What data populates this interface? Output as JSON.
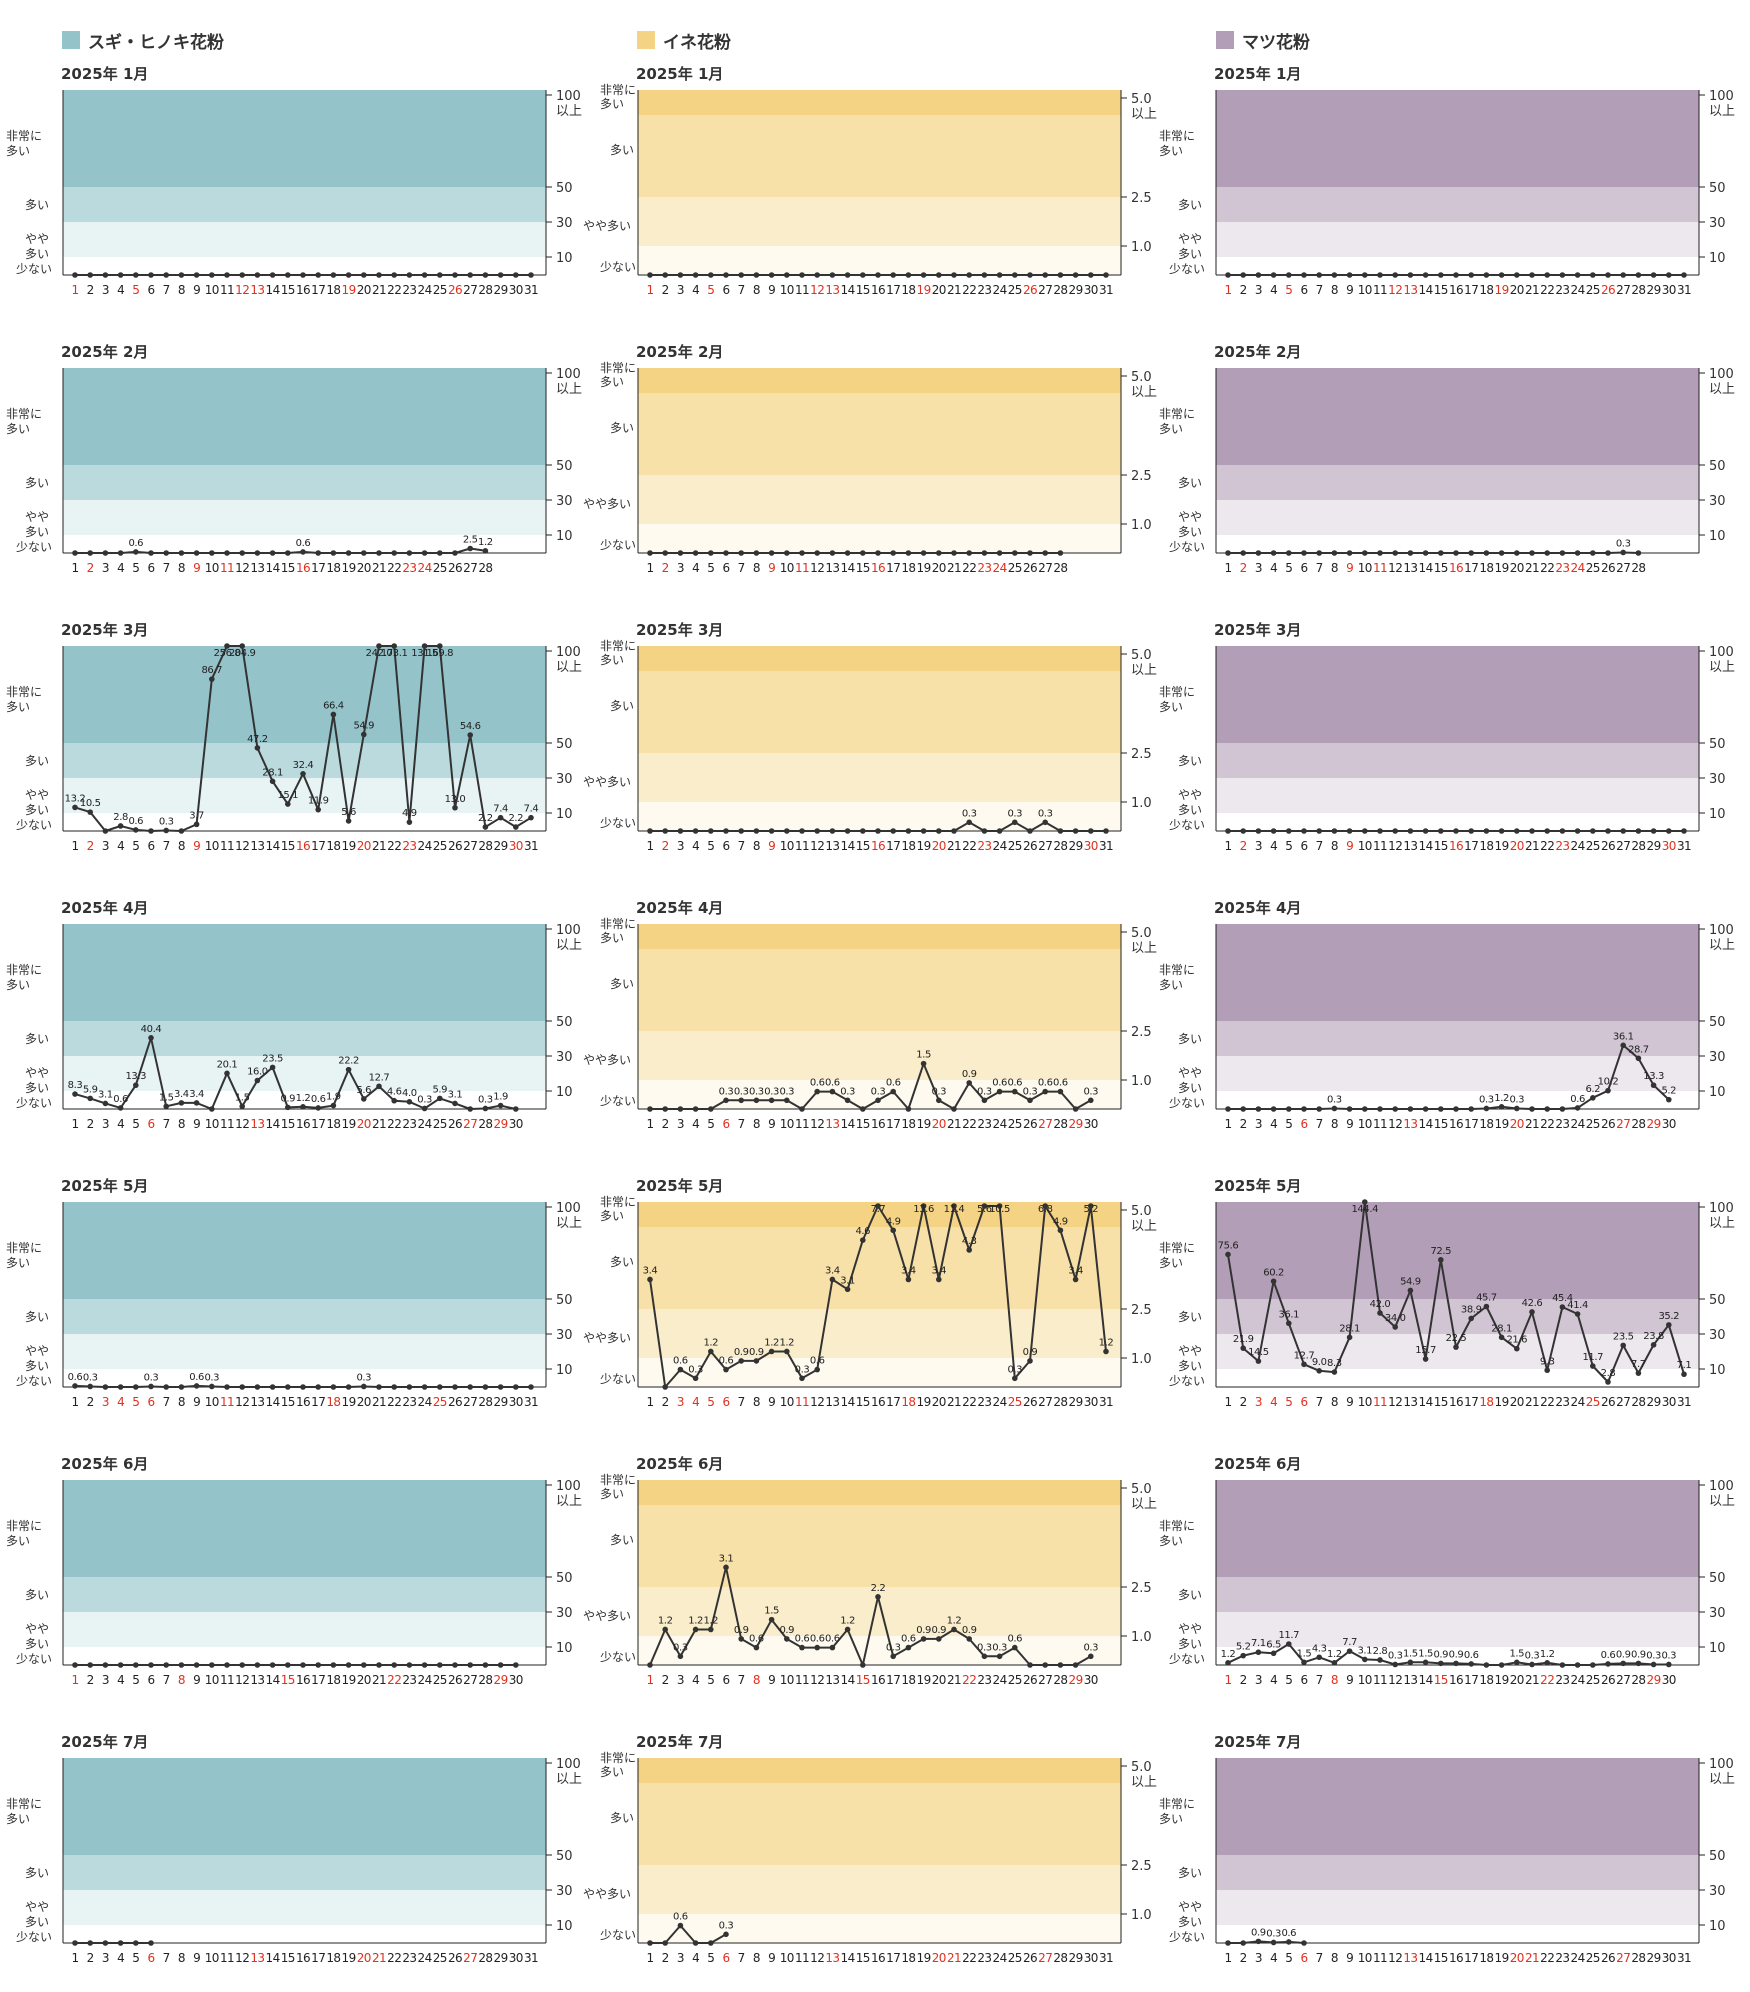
{
  "legend": [
    {
      "name": "スギ・ヒノキ花粉",
      "color": "#95c3ca"
    },
    {
      "name": "イネ花粉",
      "color": "#f5d385"
    },
    {
      "name": "マツ花粉",
      "color": "#b39eb7"
    }
  ],
  "colors": {
    "sugi": [
      "#95c3ca",
      "#bbdadd",
      "#e8f3f4",
      "#ffffff"
    ],
    "ine": [
      "#f5d385",
      "#f7e1a8",
      "#faedcc",
      "#fefaf0"
    ],
    "matsu": [
      "#b39eb7",
      "#d1c5d3",
      "#ede7ee",
      "#ffffff"
    ],
    "line": "#333333",
    "holiday": "#e0301e"
  },
  "level_labels_sugi": [
    "非常に\n多い",
    "多い",
    "やや\n多い",
    "少ない"
  ],
  "level_labels_ine": [
    "非常に\n多い",
    "多い",
    "やや多い",
    "少ない"
  ],
  "axis_sugi": [
    "100\n以上",
    "50",
    "30",
    "10"
  ],
  "axis_ine": [
    "5.0\n以上",
    "2.5",
    "1.0"
  ],
  "chart_data": [
    {
      "type": "line",
      "series_type": "sugi",
      "title": "2025年 1月",
      "days": 31,
      "holidays": [
        1,
        5,
        12,
        13,
        19,
        26
      ],
      "values": [
        0,
        0,
        0,
        0,
        0,
        0,
        0,
        0,
        0,
        0,
        0,
        0,
        0,
        0,
        0,
        0,
        0,
        0,
        0,
        0,
        0,
        0,
        0,
        0,
        0,
        0,
        0,
        0,
        0,
        0,
        0
      ],
      "labels": {}
    },
    {
      "type": "line",
      "series_type": "ine",
      "title": "2025年 1月",
      "days": 31,
      "holidays": [
        1,
        5,
        12,
        13,
        19,
        26
      ],
      "values": [
        0,
        0,
        0,
        0,
        0,
        0,
        0,
        0,
        0,
        0,
        0,
        0,
        0,
        0,
        0,
        0,
        0,
        0,
        0,
        0,
        0,
        0,
        0,
        0,
        0,
        0,
        0,
        0,
        0,
        0,
        0
      ],
      "labels": {}
    },
    {
      "type": "line",
      "series_type": "matsu",
      "title": "2025年 1月",
      "days": 31,
      "holidays": [
        1,
        5,
        12,
        13,
        19,
        26
      ],
      "values": [
        0,
        0,
        0,
        0,
        0,
        0,
        0,
        0,
        0,
        0,
        0,
        0,
        0,
        0,
        0,
        0,
        0,
        0,
        0,
        0,
        0,
        0,
        0,
        0,
        0,
        0,
        0,
        0,
        0,
        0,
        0
      ],
      "labels": {}
    },
    {
      "type": "line",
      "series_type": "sugi",
      "title": "2025年 2月",
      "days": 28,
      "holidays": [
        2,
        9,
        11,
        16,
        23,
        24
      ],
      "values": [
        0,
        0,
        0,
        0,
        0.6,
        0,
        0,
        0,
        0,
        0,
        0,
        0,
        0,
        0,
        0,
        0.6,
        0,
        0,
        0,
        0,
        0,
        0,
        0,
        0,
        0,
        0,
        2.5,
        1.2
      ],
      "labels": {
        "5": "0.6",
        "16": "0.6",
        "27": "2.5",
        "28": "1.2"
      }
    },
    {
      "type": "line",
      "series_type": "ine",
      "title": "2025年 2月",
      "days": 28,
      "holidays": [
        2,
        9,
        11,
        16,
        23,
        24
      ],
      "values": [
        0,
        0,
        0,
        0,
        0,
        0,
        0,
        0,
        0,
        0,
        0,
        0,
        0,
        0,
        0,
        0,
        0,
        0,
        0,
        0,
        0,
        0,
        0,
        0,
        0,
        0,
        0,
        0
      ],
      "labels": {}
    },
    {
      "type": "line",
      "series_type": "matsu",
      "title": "2025年 2月",
      "days": 28,
      "holidays": [
        2,
        9,
        11,
        16,
        23,
        24
      ],
      "values": [
        0,
        0,
        0,
        0,
        0,
        0,
        0,
        0,
        0,
        0,
        0,
        0,
        0,
        0,
        0,
        0,
        0,
        0,
        0,
        0,
        0,
        0,
        0,
        0,
        0,
        0,
        0.3,
        0
      ],
      "labels": {
        "27": "0.3"
      }
    },
    {
      "type": "line",
      "series_type": "sugi",
      "title": "2025年 3月",
      "days": 31,
      "holidays": [
        2,
        9,
        16,
        20,
        23,
        30
      ],
      "values": [
        13.2,
        10.5,
        0,
        2.8,
        0.6,
        0,
        0.3,
        0,
        3.7,
        86.7,
        256.8,
        204.9,
        47.2,
        28.1,
        15.1,
        32.4,
        11.9,
        66.4,
        5.6,
        54.9,
        242.0,
        173.1,
        4.9,
        131.5,
        169.8,
        13.0,
        54.6,
        2.2,
        7.4,
        2.2,
        7.4
      ],
      "labels": {
        "1": "13.2",
        "2": "10.5",
        "4": "2.8",
        "5": "0.6",
        "7": "0.3",
        "9": "3.7",
        "10": "86.7",
        "11": "256.8",
        "12": "204.9",
        "13": "47.2",
        "14": "28.1",
        "15": "15.1",
        "16": "32.4",
        "17": "11.9",
        "18": "66.4",
        "19": "5.6",
        "20": "54.9",
        "21": "242.0",
        "22": "173.1",
        "23": "4.9",
        "24": "131.5",
        "25": "169.8",
        "26": "13.0",
        "27": "54.6",
        "28": "2.2",
        "29": "7.4",
        "30": "2.2",
        "31": "7.4"
      }
    },
    {
      "type": "line",
      "series_type": "ine",
      "title": "2025年 3月",
      "days": 31,
      "holidays": [
        2,
        9,
        16,
        20,
        23,
        30
      ],
      "values": [
        0,
        0,
        0,
        0,
        0,
        0,
        0,
        0,
        0,
        0,
        0,
        0,
        0,
        0,
        0,
        0,
        0,
        0,
        0,
        0,
        0,
        0.3,
        0,
        0,
        0.3,
        0,
        0.3,
        0,
        0,
        0,
        0
      ],
      "labels": {
        "22": "0.3",
        "25": "0.3",
        "27": "0.3"
      }
    },
    {
      "type": "line",
      "series_type": "matsu",
      "title": "2025年 3月",
      "days": 31,
      "holidays": [
        2,
        9,
        16,
        20,
        23,
        30
      ],
      "values": [
        0,
        0,
        0,
        0,
        0,
        0,
        0,
        0,
        0,
        0,
        0,
        0,
        0,
        0,
        0,
        0,
        0,
        0,
        0,
        0,
        0,
        0,
        0,
        0,
        0,
        0,
        0,
        0,
        0,
        0,
        0
      ],
      "labels": {}
    },
    {
      "type": "line",
      "series_type": "sugi",
      "title": "2025年 4月",
      "days": 30,
      "holidays": [
        6,
        13,
        20,
        27,
        29
      ],
      "values": [
        8.3,
        5.9,
        3.1,
        0.6,
        13.3,
        40.4,
        1.5,
        3.4,
        3.4,
        0,
        20.1,
        1.5,
        16.0,
        23.5,
        0.9,
        1.2,
        0.6,
        1.9,
        22.2,
        5.6,
        12.7,
        4.6,
        4.0,
        0.3,
        5.9,
        3.1,
        0,
        0.3,
        1.9,
        0
      ],
      "labels": {
        "1": "8.3",
        "2": "5.9",
        "3": "3.1",
        "4": "0.6",
        "5": "13.3",
        "6": "40.4",
        "7": "1.5",
        "8": "3.4",
        "9": "3.4",
        "11": "20.1",
        "12": "1.5",
        "13": "16.0",
        "14": "23.5",
        "15": "0.9",
        "16": "1.2",
        "17": "0.6",
        "18": "1.9",
        "19": "22.2",
        "20": "5.6",
        "21": "12.7",
        "22": "4.6",
        "23": "4.0",
        "24": "0.3",
        "25": "5.9",
        "26": "3.1",
        "28": "0.3",
        "29": "1.9"
      }
    },
    {
      "type": "line",
      "series_type": "ine",
      "title": "2025年 4月",
      "days": 30,
      "holidays": [
        6,
        13,
        20,
        27,
        29
      ],
      "values": [
        0,
        0,
        0,
        0,
        0,
        0.3,
        0.3,
        0.3,
        0.3,
        0.3,
        0,
        0.6,
        0.6,
        0.3,
        0,
        0.3,
        0.6,
        0,
        1.5,
        0.3,
        0,
        0.9,
        0.3,
        0.6,
        0.6,
        0.3,
        0.6,
        0.6,
        0,
        0.3
      ],
      "labels": {
        "6": "0.3",
        "7": "0.3",
        "8": "0.3",
        "9": "0.3",
        "10": "0.3",
        "12": "0.6",
        "13": "0.6",
        "14": "0.3",
        "16": "0.3",
        "17": "0.6",
        "19": "1.5",
        "20": "0.3",
        "22": "0.9",
        "23": "0.3",
        "24": "0.6",
        "25": "0.6",
        "26": "0.3",
        "27": "0.6",
        "28": "0.6",
        "30": "0.3"
      }
    },
    {
      "type": "line",
      "series_type": "matsu",
      "title": "2025年 4月",
      "days": 30,
      "holidays": [
        6,
        13,
        20,
        27,
        29
      ],
      "values": [
        0,
        0,
        0,
        0,
        0,
        0,
        0,
        0.3,
        0,
        0,
        0,
        0,
        0,
        0,
        0,
        0,
        0,
        0.3,
        1.2,
        0.3,
        0,
        0,
        0,
        0.6,
        6.2,
        10.2,
        36.1,
        28.7,
        13.3,
        5.2
      ],
      "labels": {
        "8": "0.3",
        "18": "0.3",
        "19": "1.2",
        "20": "0.3",
        "24": "0.6",
        "25": "6.2",
        "26": "10.2",
        "27": "36.1",
        "28": "28.7",
        "29": "13.3",
        "30": "5.2"
      }
    },
    {
      "type": "line",
      "series_type": "sugi",
      "title": "2025年 5月",
      "days": 31,
      "holidays": [
        3,
        4,
        5,
        6,
        11,
        18,
        25
      ],
      "values": [
        0.6,
        0.3,
        0,
        0,
        0,
        0.3,
        0,
        0,
        0.6,
        0.3,
        0,
        0,
        0,
        0,
        0,
        0,
        0,
        0,
        0,
        0.3,
        0,
        0,
        0,
        0,
        0,
        0,
        0,
        0,
        0,
        0,
        0
      ],
      "labels": {
        "1": "0.6",
        "2": "0.3",
        "6": "0.3",
        "9": "0.6",
        "10": "0.3",
        "20": "0.3"
      }
    },
    {
      "type": "line",
      "series_type": "ine",
      "title": "2025年 5月",
      "days": 31,
      "holidays": [
        3,
        4,
        5,
        6,
        11,
        18,
        25
      ],
      "values": [
        3.4,
        0,
        0.6,
        0.3,
        1.2,
        0.6,
        0.9,
        0.9,
        1.2,
        1.2,
        0.3,
        0.6,
        3.4,
        3.1,
        4.6,
        7.7,
        4.9,
        3.4,
        13.6,
        3.4,
        11.4,
        4.3,
        5.6,
        10.5,
        0.3,
        0.9,
        6.8,
        4.9,
        3.4,
        5.2,
        1.2
      ],
      "labels": {
        "1": "3.4",
        "3": "0.6",
        "4": "0.3",
        "5": "1.2",
        "6": "0.6",
        "7": "0.9",
        "8": "0.9",
        "9": "1.2",
        "10": "1.2",
        "11": "0.3",
        "12": "0.6",
        "13": "3.4",
        "14": "3.1",
        "15": "4.6",
        "16": "7.7",
        "17": "4.9",
        "18": "3.4",
        "19": "13.6",
        "20": "3.4",
        "21": "11.4",
        "22": "4.3",
        "23": "5.6",
        "24": "10.5",
        "25": "0.3",
        "26": "0.9",
        "27": "6.8",
        "28": "4.9",
        "29": "3.4",
        "30": "5.2",
        "31": "1.2"
      }
    },
    {
      "type": "line",
      "series_type": "matsu",
      "title": "2025年 5月",
      "days": 31,
      "holidays": [
        3,
        4,
        5,
        6,
        11,
        18,
        25
      ],
      "values": [
        75.6,
        21.9,
        14.5,
        60.2,
        36.1,
        12.7,
        9.0,
        8.3,
        28.1,
        144.4,
        42.0,
        34.0,
        54.9,
        15.7,
        72.5,
        22.5,
        38.9,
        45.7,
        28.1,
        21.6,
        42.6,
        9.3,
        45.4,
        41.4,
        11.7,
        2.8,
        23.5,
        7.7,
        23.8,
        35.2,
        7.1
      ],
      "labels": {
        "1": "75.6",
        "2": "21.9",
        "3": "14.5",
        "4": "60.2",
        "5": "36.1",
        "6": "12.7",
        "7": "9.0",
        "8": "8.3",
        "9": "28.1",
        "10": "144.4",
        "11": "42.0",
        "12": "34.0",
        "13": "54.9",
        "14": "15.7",
        "15": "72.5",
        "16": "22.5",
        "17": "38.9",
        "18": "45.7",
        "19": "28.1",
        "20": "21.6",
        "21": "42.6",
        "22": "9.3",
        "23": "45.4",
        "24": "41.4",
        "25": "11.7",
        "26": "2.8",
        "27": "23.5",
        "28": "7.7",
        "29": "23.8",
        "30": "35.2",
        "31": "7.1"
      }
    },
    {
      "type": "line",
      "series_type": "sugi",
      "title": "2025年 6月",
      "days": 30,
      "holidays": [
        1,
        8,
        15,
        22,
        29
      ],
      "values": [
        0,
        0,
        0,
        0,
        0,
        0,
        0,
        0,
        0,
        0,
        0,
        0,
        0,
        0,
        0,
        0,
        0,
        0,
        0,
        0,
        0,
        0,
        0,
        0,
        0,
        0,
        0,
        0,
        0,
        0
      ],
      "labels": {}
    },
    {
      "type": "line",
      "series_type": "ine",
      "title": "2025年 6月",
      "days": 30,
      "holidays": [
        1,
        8,
        15,
        22,
        29
      ],
      "values": [
        0,
        1.2,
        0.3,
        1.2,
        1.2,
        3.1,
        0.9,
        0.6,
        1.5,
        0.9,
        0.6,
        0.6,
        0.6,
        1.2,
        0,
        2.2,
        0.3,
        0.6,
        0.9,
        0.9,
        1.2,
        0.9,
        0.3,
        0.3,
        0.6,
        0,
        0,
        0,
        0,
        0.3
      ],
      "labels": {
        "2": "1.2",
        "3": "0.3",
        "4": "1.2",
        "5": "1.2",
        "6": "3.1",
        "7": "0.9",
        "8": "0.6",
        "9": "1.5",
        "10": "0.9",
        "11": "0.6",
        "12": "0.6",
        "13": "0.6",
        "14": "1.2",
        "16": "2.2",
        "17": "0.3",
        "18": "0.6",
        "19": "0.9",
        "20": "0.9",
        "21": "1.2",
        "22": "0.9",
        "23": "0.3",
        "24": "0.3",
        "25": "0.6",
        "30": "0.3"
      }
    },
    {
      "type": "line",
      "series_type": "matsu",
      "title": "2025年 6月",
      "days": 30,
      "holidays": [
        1,
        8,
        15,
        22,
        29
      ],
      "values": [
        1.2,
        5.2,
        7.1,
        6.5,
        11.7,
        1.5,
        4.3,
        1.2,
        7.7,
        3.1,
        2.8,
        0.3,
        1.5,
        1.5,
        0.9,
        0.9,
        0.6,
        0,
        0,
        1.5,
        0.3,
        1.2,
        0,
        0,
        0,
        0.6,
        0.9,
        0.9,
        0.3,
        0.3
      ],
      "labels": {
        "1": "1.2",
        "2": "5.2",
        "3": "7.1",
        "4": "6.5",
        "5": "11.7",
        "6": "1.5",
        "7": "4.3",
        "8": "1.2",
        "9": "7.7",
        "10": "3.1",
        "11": "2.8",
        "12": "0.3",
        "13": "1.5",
        "14": "1.5",
        "15": "0.9",
        "16": "0.9",
        "17": "0.6",
        "20": "1.5",
        "21": "0.3",
        "22": "1.2",
        "26": "0.6",
        "27": "0.9",
        "28": "0.9",
        "29": "0.3",
        "30": "0.3"
      }
    },
    {
      "type": "line",
      "series_type": "sugi",
      "title": "2025年 7月",
      "days": 31,
      "holidays": [
        6,
        13,
        20,
        21,
        27
      ],
      "values": [
        0,
        0,
        0,
        0,
        0,
        0
      ],
      "labels": {}
    },
    {
      "type": "line",
      "series_type": "ine",
      "title": "2025年 7月",
      "days": 31,
      "holidays": [
        6,
        13,
        20,
        21,
        27
      ],
      "values": [
        0,
        0,
        0.6,
        0,
        0,
        0.3
      ],
      "labels": {
        "3": "0.6",
        "6": "0.3"
      }
    },
    {
      "type": "line",
      "series_type": "matsu",
      "title": "2025年 7月",
      "days": 31,
      "holidays": [
        6,
        13,
        20,
        21,
        27
      ],
      "values": [
        0,
        0,
        0.9,
        0.3,
        0.6,
        0
      ],
      "labels": {
        "3": "0.9",
        "4": "0.3",
        "5": "0.6"
      }
    }
  ]
}
